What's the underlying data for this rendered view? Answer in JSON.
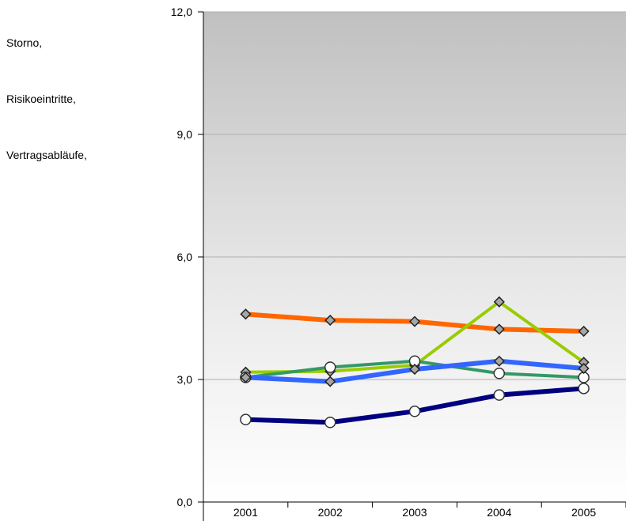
{
  "legend": {
    "items": [
      {
        "label": "Storno,"
      },
      {
        "label": "Risikoeintritte,"
      },
      {
        "label": "Vertragsabläufe,"
      }
    ]
  },
  "chart_data": {
    "type": "line",
    "categories": [
      "2001",
      "2002",
      "2003",
      "2004",
      "2005"
    ],
    "ylim": [
      0,
      12
    ],
    "yticks": [
      "0,0",
      "3,0",
      "6,0",
      "9,0",
      "12,0"
    ],
    "ytick_values": [
      0,
      3,
      6,
      9,
      12
    ],
    "grid": true,
    "background": "gradient grey to white",
    "series": [
      {
        "color": "#ff6600",
        "marker": "diamond",
        "values": [
          4.6,
          4.45,
          4.42,
          4.23,
          4.18
        ]
      },
      {
        "color": "#99cc00",
        "marker": "diamond",
        "values": [
          3.18,
          3.2,
          3.35,
          4.9,
          3.42
        ]
      },
      {
        "color": "#339966",
        "marker": "circle",
        "values": [
          3.05,
          3.3,
          3.45,
          3.15,
          3.05
        ]
      },
      {
        "color": "#3366ff",
        "marker": "diamond",
        "values": [
          3.05,
          2.95,
          3.25,
          3.45,
          3.27
        ]
      },
      {
        "color": "#000080",
        "marker": "circle",
        "values": [
          2.02,
          1.95,
          2.22,
          2.62,
          2.78
        ]
      }
    ]
  }
}
